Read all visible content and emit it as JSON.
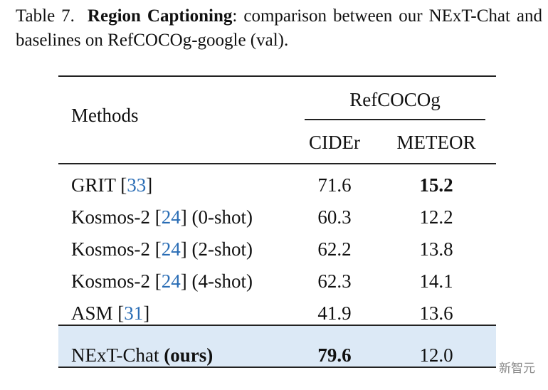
{
  "caption": {
    "label": "Table 7.",
    "title": "Region Captioning",
    "text": ": comparison between our NExT-Chat and baselines on RefCOCOg-google (val)."
  },
  "table": {
    "header": {
      "methods": "Methods",
      "group": "RefCOCOg",
      "columns": [
        "CIDEr",
        "METEOR"
      ]
    },
    "rows": [
      {
        "method": [
          {
            "text": "GRIT ["
          },
          {
            "text": "33",
            "link": true
          },
          {
            "text": "]"
          }
        ],
        "cells": [
          {
            "text": "71.6"
          },
          {
            "text": "15.2",
            "bold": true
          }
        ]
      },
      {
        "method": [
          {
            "text": "Kosmos-2 ["
          },
          {
            "text": "24",
            "link": true
          },
          {
            "text": "] (0-shot)"
          }
        ],
        "cells": [
          {
            "text": "60.3"
          },
          {
            "text": "12.2"
          }
        ]
      },
      {
        "method": [
          {
            "text": "Kosmos-2 ["
          },
          {
            "text": "24",
            "link": true
          },
          {
            "text": "] (2-shot)"
          }
        ],
        "cells": [
          {
            "text": "62.2"
          },
          {
            "text": "13.8"
          }
        ]
      },
      {
        "method": [
          {
            "text": "Kosmos-2 ["
          },
          {
            "text": "24",
            "link": true
          },
          {
            "text": "] (4-shot)"
          }
        ],
        "cells": [
          {
            "text": "62.3"
          },
          {
            "text": "14.1"
          }
        ]
      },
      {
        "method": [
          {
            "text": "ASM ["
          },
          {
            "text": "31",
            "link": true
          },
          {
            "text": "]"
          }
        ],
        "cells": [
          {
            "text": "41.9"
          },
          {
            "text": "13.6"
          }
        ]
      },
      {
        "method": [
          {
            "text": "NExT-Chat "
          },
          {
            "text": "(ours)",
            "bold": true
          }
        ],
        "cells": [
          {
            "text": "79.6",
            "bold": true
          },
          {
            "text": "12.0"
          }
        ],
        "highlight": true
      }
    ]
  },
  "watermark": "新智元"
}
